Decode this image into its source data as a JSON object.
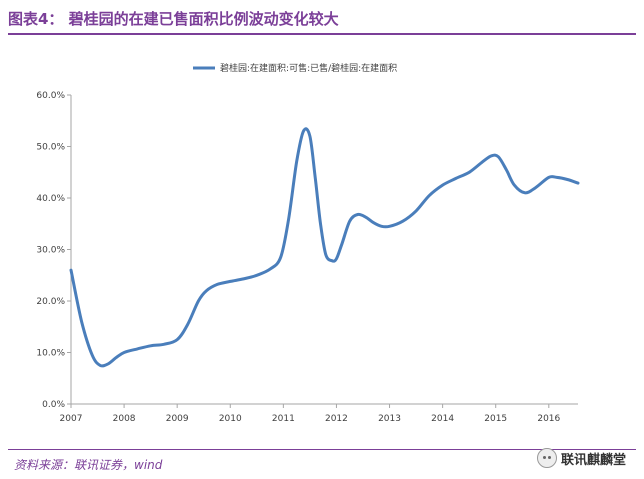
{
  "header": {
    "title": "图表4：  碧桂园的在建已售面积比例波动变化较大"
  },
  "footer": {
    "source": "资料来源：联讯证券，wind",
    "watermark": "联讯麒麟堂"
  },
  "colors": {
    "accent": "#7b3f98",
    "series": "#4a7ebb"
  },
  "icons": {
    "watermark_icon": "wechat-icon"
  },
  "chart_data": {
    "type": "line",
    "title": "",
    "xlabel": "",
    "ylabel": "",
    "legend_position": "top-center",
    "grid": false,
    "xlim": [
      2007,
      2016.55
    ],
    "ylim": [
      0,
      60
    ],
    "x_ticks": [
      2007,
      2008,
      2009,
      2010,
      2011,
      2012,
      2013,
      2014,
      2015,
      2016
    ],
    "x_tick_labels": [
      "2007",
      "2008",
      "2009",
      "2010",
      "2011",
      "2012",
      "2013",
      "2014",
      "2015",
      "2016"
    ],
    "y_ticks": [
      0,
      10,
      20,
      30,
      40,
      50,
      60
    ],
    "y_tick_labels": [
      "0.0%",
      "10.0%",
      "20.0%",
      "30.0%",
      "40.0%",
      "50.0%",
      "60.0%"
    ],
    "series": [
      {
        "name": "碧桂园:在建面积:可售:已售/碧桂园:在建面积",
        "x": [
          2007.0,
          2007.2,
          2007.4,
          2007.55,
          2007.7,
          2007.85,
          2008.0,
          2008.25,
          2008.5,
          2008.75,
          2009.0,
          2009.2,
          2009.4,
          2009.55,
          2009.75,
          2010.0,
          2010.25,
          2010.5,
          2010.75,
          2010.95,
          2011.1,
          2011.25,
          2011.38,
          2011.5,
          2011.6,
          2011.7,
          2011.8,
          2011.92,
          2012.0,
          2012.1,
          2012.25,
          2012.4,
          2012.55,
          2012.7,
          2012.85,
          2013.0,
          2013.25,
          2013.5,
          2013.75,
          2014.0,
          2014.25,
          2014.5,
          2014.75,
          2014.92,
          2015.05,
          2015.2,
          2015.35,
          2015.55,
          2015.75,
          2016.0,
          2016.15,
          2016.35,
          2016.55
        ],
        "values": [
          26.0,
          16.0,
          9.5,
          7.5,
          7.8,
          9.0,
          10.0,
          10.7,
          11.3,
          11.6,
          12.5,
          15.5,
          20.0,
          22.0,
          23.2,
          23.8,
          24.3,
          25.0,
          26.2,
          28.5,
          36.0,
          47.0,
          53.0,
          52.0,
          44.0,
          35.0,
          29.0,
          27.8,
          28.2,
          31.0,
          35.5,
          36.8,
          36.3,
          35.2,
          34.5,
          34.5,
          35.5,
          37.5,
          40.5,
          42.5,
          43.8,
          45.0,
          47.0,
          48.2,
          48.0,
          45.5,
          42.5,
          41.0,
          42.0,
          44.0,
          44.0,
          43.6,
          42.9
        ]
      }
    ]
  }
}
